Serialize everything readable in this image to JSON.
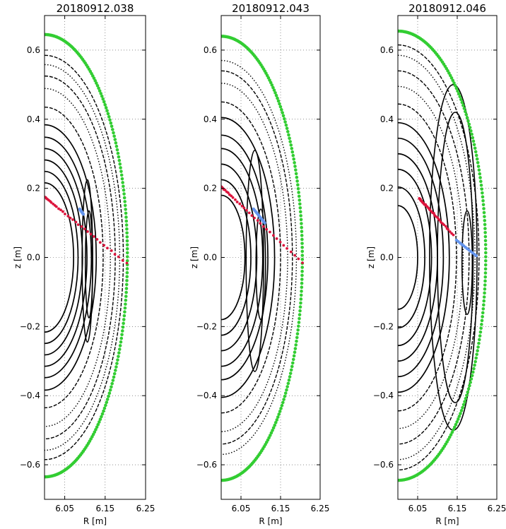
{
  "chart_data": [
    {
      "type": "scatter",
      "title": "20180912.038",
      "xlabel": "R [m]",
      "ylabel": "z [m]",
      "xlim": [
        6.0,
        6.25
      ],
      "ylim": [
        -0.7,
        0.7
      ],
      "xticks": [
        "6.05",
        "6.15",
        "6.25"
      ],
      "yticks": [
        "0.6",
        "0.4",
        "0.2",
        "0.0",
        "−0.2",
        "−0.4",
        "−0.6"
      ],
      "grid": true,
      "boundary": {
        "color": "#32cd32",
        "r_outer": 6.205,
        "z_top": 0.645,
        "z_bottom": -0.635
      },
      "black_surfaces": [
        0.072,
        0.083,
        0.094,
        0.105,
        0.116,
        0.128,
        0.145,
        0.163,
        0.175,
        0.186,
        0.195
      ],
      "islands": [
        {
          "r_center": 6.106,
          "z_center": -0.01,
          "half_width": 0.013,
          "half_height": 0.235
        },
        {
          "r_center": 6.11,
          "z_center": -0.02,
          "half_width": 0.009,
          "half_height": 0.155
        }
      ],
      "red_points": {
        "color": "#dc143c",
        "r_start": 6.0,
        "z_start": 0.175,
        "r_end": 6.203,
        "z_end": -0.017
      },
      "blue_points": {
        "color": "#6495ed",
        "r_start": 6.087,
        "z_start": 0.14,
        "r_end": 6.096,
        "z_end": 0.125
      }
    },
    {
      "type": "scatter",
      "title": "20180912.043",
      "xlabel": "R [m]",
      "ylabel": "z [m]",
      "xlim": [
        6.0,
        6.25
      ],
      "ylim": [
        -0.7,
        0.7
      ],
      "xticks": [
        "6.05",
        "6.15",
        "6.25"
      ],
      "yticks": [
        "0.6",
        "0.4",
        "0.2",
        "0.0",
        "−0.2",
        "−0.4",
        "−0.6"
      ],
      "grid": true,
      "boundary": {
        "color": "#32cd32",
        "r_outer": 6.205,
        "z_top": 0.64,
        "z_bottom": -0.645
      },
      "black_surfaces": [
        0.06,
        0.075,
        0.09,
        0.105,
        0.118,
        0.135,
        0.15,
        0.168,
        0.18,
        0.19
      ],
      "islands": [
        {
          "r_center": 6.1,
          "z_center": -0.02,
          "half_width": 0.012,
          "half_height": 0.16
        },
        {
          "r_center": 6.085,
          "z_center": -0.01,
          "half_width": 0.022,
          "half_height": 0.32
        }
      ],
      "red_points": {
        "color": "#dc143c",
        "r_start": 6.0,
        "z_start": 0.205,
        "r_end": 6.205,
        "z_end": -0.015
      },
      "blue_points": {
        "color": "#6495ed",
        "r_start": 6.082,
        "z_start": 0.14,
        "r_end": 6.11,
        "z_end": 0.1
      }
    },
    {
      "type": "scatter",
      "title": "20180912.046",
      "xlabel": "R [m]",
      "ylabel": "z [m]",
      "xlim": [
        6.0,
        6.25
      ],
      "ylim": [
        -0.7,
        0.7
      ],
      "xticks": [
        "6.05",
        "6.15",
        "6.25"
      ],
      "yticks": [
        "0.6",
        "0.4",
        "0.2",
        "0.0",
        "−0.2",
        "−0.4",
        "−0.6"
      ],
      "grid": true,
      "boundary": {
        "color": "#32cd32",
        "r_outer": 6.222,
        "z_top": 0.655,
        "z_bottom": -0.645
      },
      "black_surfaces": [
        0.05,
        0.068,
        0.085,
        0.1,
        0.115,
        0.13,
        0.148,
        0.165,
        0.18,
        0.195,
        0.205
      ],
      "islands": [
        {
          "r_center": 6.14,
          "z_center": 0.0,
          "half_width": 0.06,
          "half_height": 0.5
        },
        {
          "r_center": 6.175,
          "z_center": -0.015,
          "half_width": 0.013,
          "half_height": 0.15
        },
        {
          "r_center": 6.145,
          "z_center": 0.0,
          "half_width": 0.045,
          "half_height": 0.42
        }
      ],
      "red_points": {
        "color": "#dc143c",
        "r_start": 6.055,
        "z_start": 0.17,
        "r_end": 6.14,
        "z_end": 0.065
      },
      "blue_points": {
        "color": "#6495ed",
        "r_start": 6.148,
        "z_start": 0.05,
        "r_end": 6.198,
        "z_end": 0.005
      }
    }
  ]
}
